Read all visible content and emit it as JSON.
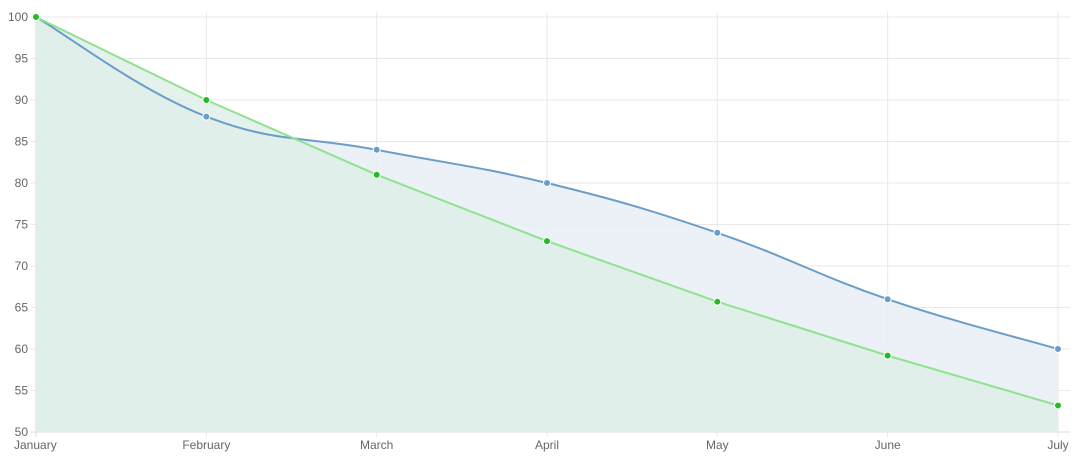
{
  "chart_data": {
    "type": "line",
    "title": "",
    "xlabel": "",
    "ylabel": "",
    "categories": [
      "January",
      "February",
      "March",
      "April",
      "May",
      "June",
      "July"
    ],
    "ylim": [
      50,
      100
    ],
    "yticks": [
      50,
      55,
      60,
      65,
      70,
      75,
      80,
      85,
      90,
      95,
      100
    ],
    "grid": true,
    "legend": "none",
    "series": [
      {
        "values": [
          100,
          88,
          84,
          80,
          74,
          66,
          60
        ],
        "color": "#6a9ec8",
        "fill": "#e8eff4",
        "point_color": "#6a9ec8",
        "curved": true
      },
      {
        "values": [
          100,
          90,
          81,
          73,
          65.7,
          59.2,
          53.2
        ],
        "color": "#8fe28f",
        "fill": "#dfeee9",
        "point_color": "#22bb22",
        "curved": false
      }
    ]
  }
}
